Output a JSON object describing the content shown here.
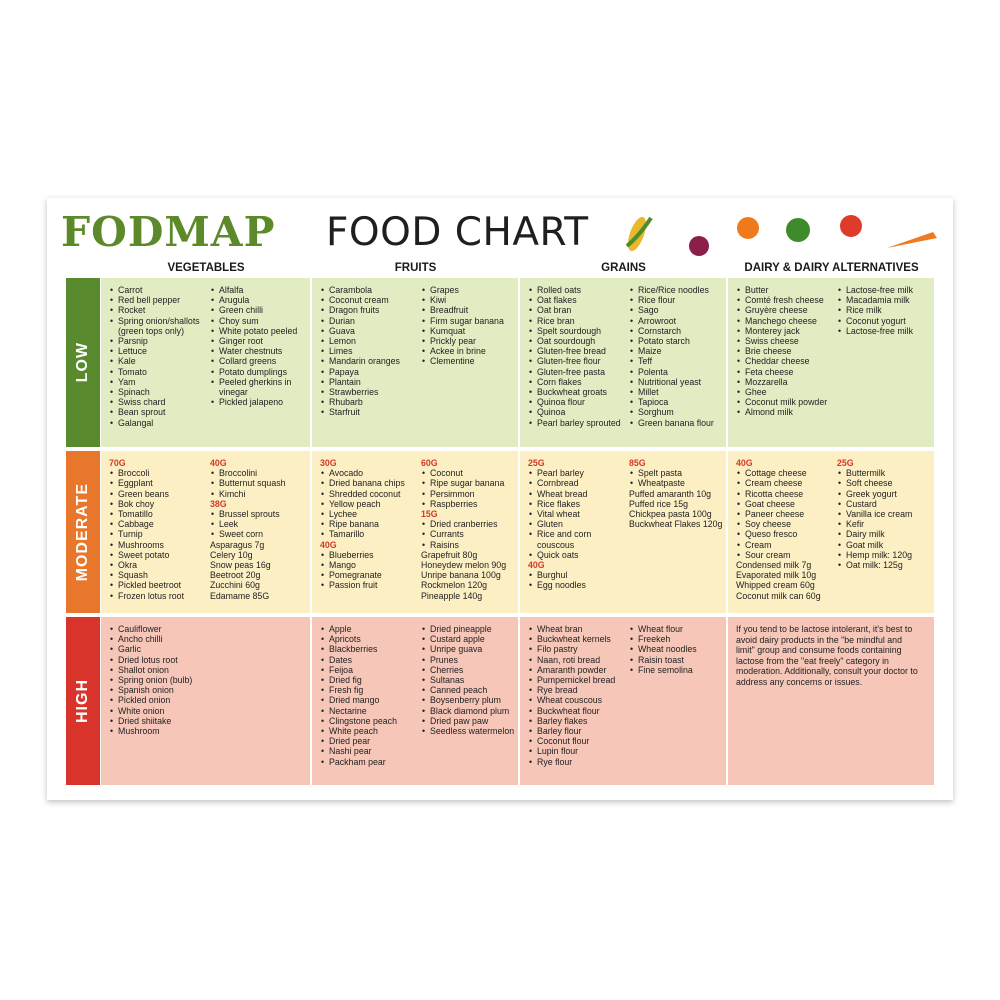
{
  "title": {
    "bold": "FODMAP",
    "rest": "FOOD CHART"
  },
  "columns": [
    "VEGETABLES",
    "FRUITS",
    "GRAINS",
    "DAIRY & DAIRY ALTERNATIVES"
  ],
  "rows": [
    {
      "label": "LOW",
      "cells": [
        {
          "cols": [
            [
              {
                "items": [
                  "Carrot",
                  "Red bell pepper",
                  "Rocket",
                  "Spring onion/shallots (green tops only)",
                  "Parsnip",
                  "Lettuce",
                  "Kale",
                  "Tomato",
                  "Yam",
                  "Spinach",
                  "Swiss chard",
                  "Bean sprout",
                  "Galangal"
                ]
              }
            ],
            [
              {
                "items": [
                  "Alfalfa",
                  "Arugula",
                  "Green chilli",
                  "Choy sum",
                  "White potato peeled",
                  "Ginger root",
                  "Water chestnuts",
                  "Collard greens",
                  "Potato dumplings",
                  "Peeled gherkins in vinegar",
                  "Pickled jalapeno"
                ]
              }
            ]
          ]
        },
        {
          "cols": [
            [
              {
                "items": [
                  "Carambola",
                  "Coconut cream",
                  "Dragon fruits",
                  "Durian",
                  "Guava",
                  "Lemon",
                  "Limes",
                  "Mandarin oranges",
                  "Papaya",
                  "Plantain",
                  "Strawberries",
                  "Rhubarb",
                  "Starfruit"
                ]
              }
            ],
            [
              {
                "items": [
                  "Grapes",
                  "Kiwi",
                  "Breadfruit",
                  "Firm sugar banana",
                  "Kumquat",
                  "Prickly pear",
                  "Ackee in brine",
                  "Clementine"
                ]
              }
            ]
          ]
        },
        {
          "cols": [
            [
              {
                "items": [
                  "Rolled oats",
                  "Oat flakes",
                  "Oat bran",
                  "Rice bran",
                  "Spelt sourdough",
                  "Oat sourdough",
                  "Gluten-free bread",
                  "Gluten-free flour",
                  "Gluten-free pasta",
                  "Corn flakes",
                  "Buckwheat groats",
                  "Quinoa flour",
                  "Quinoa",
                  "Pearl barley sprouted"
                ]
              }
            ],
            [
              {
                "items": [
                  "Rice/Rice noodles",
                  "Rice flour",
                  "Sago",
                  "Arrowroot",
                  "Cornstarch",
                  "Potato starch",
                  "Maize",
                  "Teff",
                  "Polenta",
                  "Nutritional yeast",
                  "Millet",
                  "Tapioca",
                  "Sorghum",
                  "Green banana flour"
                ]
              }
            ]
          ]
        },
        {
          "cols": [
            [
              {
                "items": [
                  "Butter",
                  "Comté fresh cheese",
                  "Gruyère cheese",
                  "Manchego cheese",
                  "Monterey jack",
                  "Swiss cheese",
                  "Brie cheese",
                  "Cheddar cheese",
                  "Feta cheese",
                  "Mozzarella",
                  "Ghee",
                  "Coconut milk powder",
                  "Almond milk"
                ]
              }
            ],
            [
              {
                "items": [
                  "Lactose-free milk",
                  "Macadamia milk",
                  "Rice milk",
                  "Coconut yogurt",
                  "Lactose-free milk"
                ]
              }
            ]
          ]
        }
      ]
    },
    {
      "label": "MODERATE",
      "cells": [
        {
          "cols": [
            [
              {
                "amount": "70G",
                "items": [
                  "Broccoli",
                  "Eggplant",
                  "Green beans",
                  "Bok choy",
                  "Tomatillo",
                  "Cabbage",
                  "Turnip",
                  "Mushrooms",
                  "Sweet potato",
                  "Okra",
                  "Squash",
                  "Pickled beetroot",
                  "Frozen lotus root"
                ]
              }
            ],
            [
              {
                "amount": "40G",
                "items": [
                  "Broccolini",
                  "Butternut squash",
                  "Kimchi"
                ]
              },
              {
                "amount": "38G",
                "items": [
                  "Brussel sprouts",
                  "Leek",
                  "Sweet corn"
                ]
              },
              {
                "lines": [
                  "Asparagus 7g",
                  "Celery 10g",
                  "Snow peas 16g",
                  "Beetroot 20g",
                  "Zucchini 60g",
                  "Edamame 85G"
                ]
              }
            ]
          ]
        },
        {
          "cols": [
            [
              {
                "amount": "30G",
                "items": [
                  "Avocado",
                  "Dried banana chips",
                  "Shredded coconut",
                  "Yellow peach",
                  "Lychee",
                  "Ripe banana",
                  "Tamarillo"
                ]
              },
              {
                "amount": "40G",
                "items": [
                  "Blueberries",
                  "Mango",
                  "Pomegranate",
                  "Passion fruit"
                ]
              }
            ],
            [
              {
                "amount": "60G",
                "items": [
                  "Coconut",
                  "Ripe sugar banana",
                  "Persimmon",
                  "Raspberries"
                ]
              },
              {
                "amount": "15G",
                "items": [
                  "Dried cranberries",
                  "Currants",
                  "Raisins"
                ]
              },
              {
                "lines": [
                  "Grapefruit 80g",
                  "Honeydew melon 90g",
                  "Unripe banana 100g",
                  "Rockmelon 120g",
                  "Pineapple 140g"
                ]
              }
            ]
          ]
        },
        {
          "cols": [
            [
              {
                "amount": "25G",
                "items": [
                  "Pearl barley",
                  "Cornbread",
                  "Wheat bread",
                  "Rice flakes",
                  "Vital wheat",
                  "Gluten",
                  "Rice and corn couscous",
                  "Quick oats"
                ]
              },
              {
                "amount": "40G",
                "items": [
                  "Burghul",
                  "Egg noodles"
                ]
              }
            ],
            [
              {
                "amount": "85G",
                "items": [
                  "Spelt pasta",
                  "Wheatpaste"
                ]
              },
              {
                "lines": [
                  "Puffed amaranth 10g",
                  "Puffed rice 15g",
                  "Chickpea pasta 100g",
                  "Buckwheat Flakes 120g"
                ]
              }
            ]
          ]
        },
        {
          "cols": [
            [
              {
                "amount": "40G",
                "items": [
                  "Cottage cheese",
                  "Cream cheese",
                  "Ricotta cheese",
                  "Goat cheese",
                  "Paneer cheese",
                  "Soy cheese",
                  "Queso fresco",
                  "Cream",
                  "Sour cream"
                ]
              },
              {
                "lines": [
                  "Condensed milk 7g",
                  "Evaporated milk 10g",
                  "Whipped cream 60g",
                  "Coconut milk can 60g"
                ]
              }
            ],
            [
              {
                "amount": "25G",
                "items": [
                  "Buttermilk",
                  "Soft cheese",
                  "Greek yogurt",
                  "Custard",
                  "Vanilla ice cream",
                  "Kefir",
                  "Dairy milk",
                  "Goat milk",
                  "Hemp milk: 120g",
                  "Oat milk: 125g"
                ]
              }
            ]
          ]
        }
      ]
    },
    {
      "label": "HIGH",
      "cells": [
        {
          "cols": [
            [
              {
                "items": [
                  "Cauliflower",
                  "Ancho chilli",
                  "Garlic",
                  "Dried lotus root",
                  "Shallot onion",
                  "Spring onion (bulb)",
                  "Spanish onion",
                  "Pickled onion",
                  "White onion",
                  "Dried shiitake",
                  "Mushroom"
                ]
              }
            ]
          ]
        },
        {
          "cols": [
            [
              {
                "items": [
                  "Apple",
                  "Apricots",
                  "Blackberries",
                  "Dates",
                  "Feijoa",
                  "Dried fig",
                  "Fresh fig",
                  "Dried mango",
                  "Nectarine",
                  "Clingstone peach",
                  "White peach",
                  "Dried pear",
                  "Nashi pear",
                  "Packham pear"
                ]
              }
            ],
            [
              {
                "items": [
                  "Dried pineapple",
                  "Custard apple",
                  "Unripe guava",
                  "Prunes",
                  "Cherries",
                  "Sultanas",
                  "Canned peach",
                  "Boysenberry plum",
                  "Black diamond plum",
                  "Dried paw paw",
                  "Seedless watermelon"
                ]
              }
            ]
          ]
        },
        {
          "cols": [
            [
              {
                "items": [
                  "Wheat bran",
                  "Buckwheat kernels",
                  "Filo pastry",
                  "Naan, roti bread",
                  "Amaranth powder",
                  "Pumpernickel bread",
                  "Rye bread",
                  "Wheat couscous",
                  "Buckwheat flour",
                  "Barley flakes",
                  "Barley flour",
                  "Coconut flour",
                  "Lupin flour",
                  "Rye flour"
                ]
              }
            ],
            [
              {
                "items": [
                  "Wheat flour",
                  "Freekeh",
                  "Wheat noodles",
                  "Raisin toast",
                  "Fine semolina"
                ]
              }
            ]
          ]
        },
        {
          "text": "If you tend to be lactose intolerant, it's best to avoid dairy products in the \"be mindful and limit\" group and consume foods containing lactose from the \"eat freely\" category in moderation. Additionally, consult your doctor to address any concerns or issues."
        }
      ]
    }
  ]
}
